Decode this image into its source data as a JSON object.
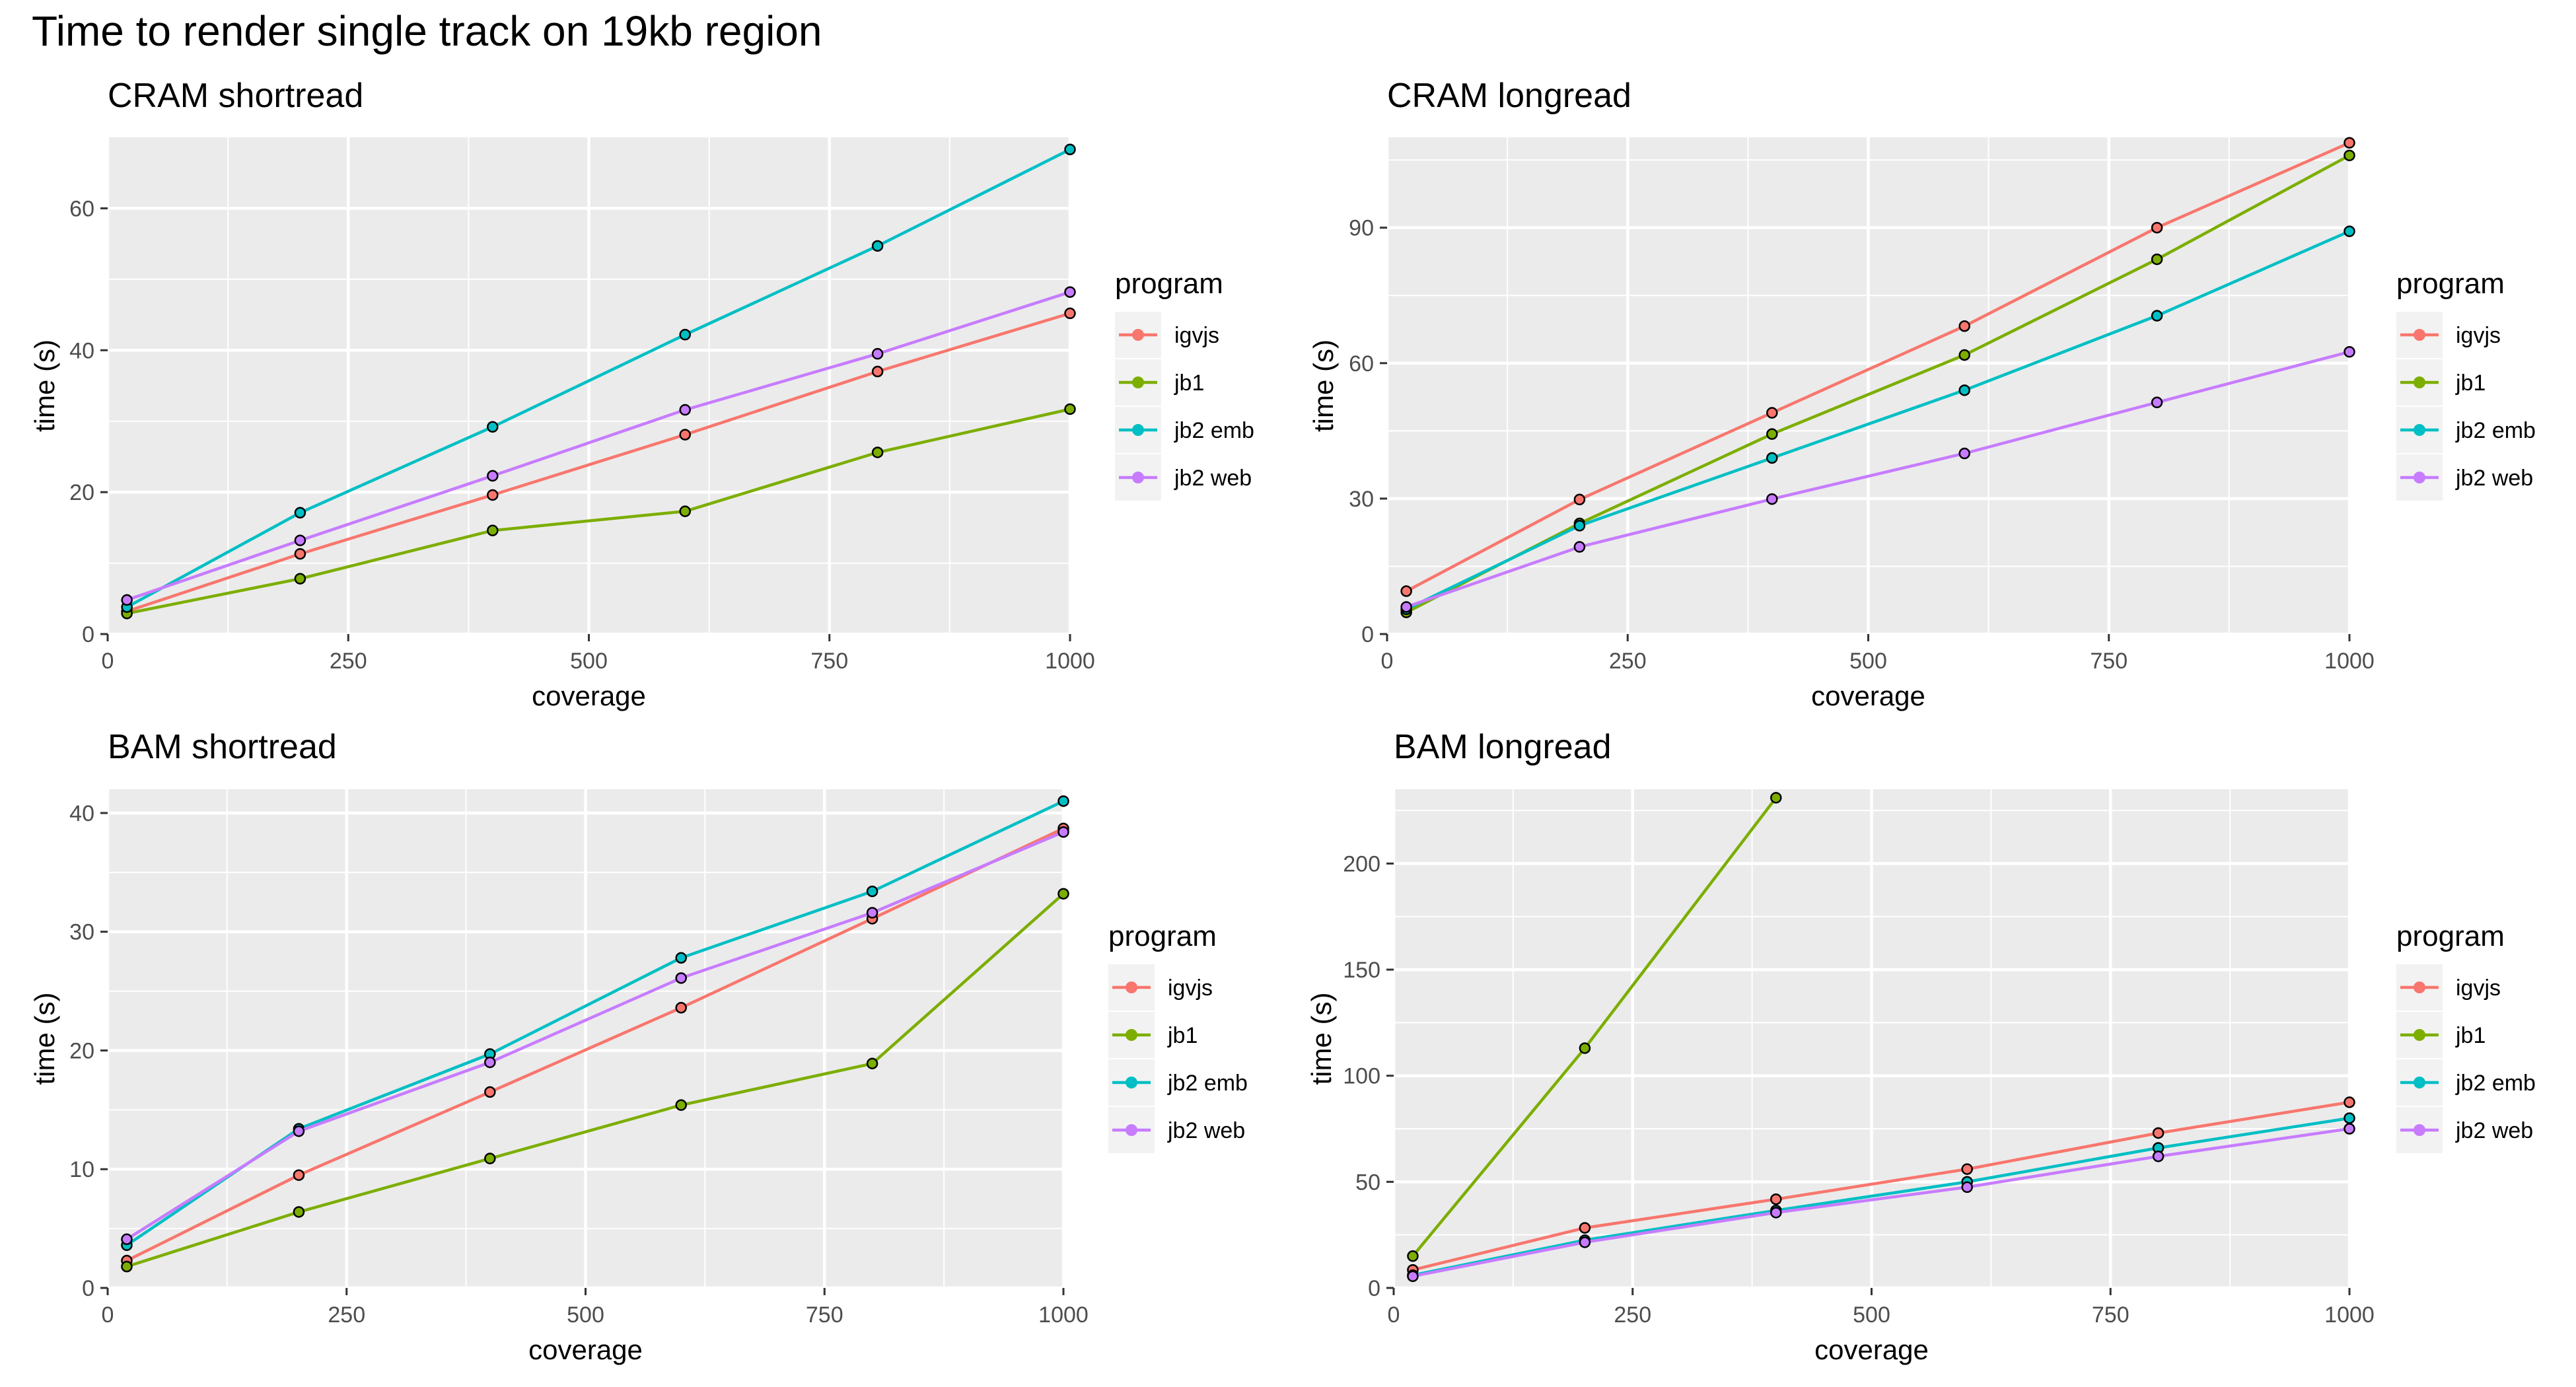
{
  "title": "Time to render single track on 19kb region",
  "colors": {
    "panel_bg": "#EBEBEB",
    "grid": "#FFFFFF",
    "text": "#000000",
    "tick_text": "#4D4D4D",
    "point_outline": "#000000"
  },
  "chart_data": [
    {
      "type": "line",
      "title": "CRAM shortread",
      "xlabel": "coverage",
      "ylabel": "time (s)",
      "xlim": [
        0,
        1000
      ],
      "ylim": [
        0,
        70
      ],
      "x": [
        20,
        200,
        400,
        600,
        800,
        1000
      ],
      "xticks": [
        0,
        250,
        500,
        750,
        1000
      ],
      "yticks": [
        0,
        20,
        40,
        60
      ],
      "legend_title": "program",
      "legend_position": "right",
      "series": [
        {
          "name": "igvjs",
          "color": "#F8766D",
          "values": [
            3.2,
            11.3,
            19.6,
            28.1,
            37.0,
            45.2
          ]
        },
        {
          "name": "jb1",
          "color": "#7CAE00",
          "values": [
            2.9,
            7.8,
            14.6,
            17.3,
            25.6,
            31.7
          ]
        },
        {
          "name": "jb2 emb",
          "color": "#00BFC4",
          "values": [
            3.8,
            17.1,
            29.2,
            42.2,
            54.7,
            68.3
          ]
        },
        {
          "name": "jb2 web",
          "color": "#C77CFF",
          "values": [
            4.8,
            13.2,
            22.3,
            31.6,
            39.5,
            48.2
          ]
        }
      ]
    },
    {
      "type": "line",
      "title": "CRAM longread",
      "xlabel": "coverage",
      "ylabel": "time (s)",
      "xlim": [
        0,
        1000
      ],
      "ylim": [
        0,
        110
      ],
      "x": [
        20,
        200,
        400,
        600,
        800,
        1000
      ],
      "xticks": [
        0,
        250,
        500,
        750,
        1000
      ],
      "yticks": [
        0,
        30,
        60,
        90
      ],
      "legend_title": "program",
      "legend_position": "right",
      "series": [
        {
          "name": "igvjs",
          "color": "#F8766D",
          "values": [
            9.5,
            29.8,
            49.0,
            68.2,
            90.0,
            108.8
          ]
        },
        {
          "name": "jb1",
          "color": "#7CAE00",
          "values": [
            4.8,
            24.5,
            44.3,
            61.8,
            83.0,
            106.0
          ]
        },
        {
          "name": "jb2 emb",
          "color": "#00BFC4",
          "values": [
            5.5,
            24.0,
            39.0,
            54.0,
            70.5,
            89.2
          ]
        },
        {
          "name": "jb2 web",
          "color": "#C77CFF",
          "values": [
            6.0,
            19.3,
            29.9,
            40.0,
            51.3,
            62.5
          ]
        }
      ]
    },
    {
      "type": "line",
      "title": "BAM shortread",
      "xlabel": "coverage",
      "ylabel": "time (s)",
      "xlim": [
        0,
        1000
      ],
      "ylim": [
        0,
        42
      ],
      "x": [
        20,
        200,
        400,
        600,
        800,
        1000
      ],
      "xticks": [
        0,
        250,
        500,
        750,
        1000
      ],
      "yticks": [
        0,
        10,
        20,
        30,
        40
      ],
      "legend_title": "program",
      "legend_position": "right",
      "series": [
        {
          "name": "igvjs",
          "color": "#F8766D",
          "values": [
            2.3,
            9.5,
            16.5,
            23.6,
            31.1,
            38.7
          ]
        },
        {
          "name": "jb1",
          "color": "#7CAE00",
          "values": [
            1.8,
            6.4,
            10.9,
            15.4,
            18.9,
            33.2
          ]
        },
        {
          "name": "jb2 emb",
          "color": "#00BFC4",
          "values": [
            3.6,
            13.4,
            19.7,
            27.8,
            33.4,
            41.0
          ]
        },
        {
          "name": "jb2 web",
          "color": "#C77CFF",
          "values": [
            4.1,
            13.2,
            19.0,
            26.1,
            31.6,
            38.4
          ]
        }
      ]
    },
    {
      "type": "line",
      "title": "BAM longread",
      "xlabel": "coverage",
      "ylabel": "time (s)",
      "xlim": [
        0,
        1000
      ],
      "ylim": [
        0,
        235
      ],
      "x": [
        20,
        200,
        400,
        600,
        800,
        1000
      ],
      "xticks": [
        0,
        250,
        500,
        750,
        1000
      ],
      "yticks": [
        0,
        50,
        100,
        150,
        200
      ],
      "legend_title": "program",
      "legend_position": "right",
      "series": [
        {
          "name": "igvjs",
          "color": "#F8766D",
          "values": [
            8.5,
            28.3,
            41.8,
            56.0,
            73.0,
            87.5
          ]
        },
        {
          "name": "jb1",
          "color": "#7CAE00",
          "x": [
            20,
            200,
            400
          ],
          "values": [
            15.0,
            113.0,
            231.0
          ]
        },
        {
          "name": "jb2 emb",
          "color": "#00BFC4",
          "values": [
            6.0,
            22.5,
            36.5,
            50.0,
            66.0,
            80.0
          ]
        },
        {
          "name": "jb2 web",
          "color": "#C77CFF",
          "values": [
            5.5,
            21.5,
            35.5,
            47.5,
            62.0,
            75.0
          ]
        }
      ]
    }
  ]
}
